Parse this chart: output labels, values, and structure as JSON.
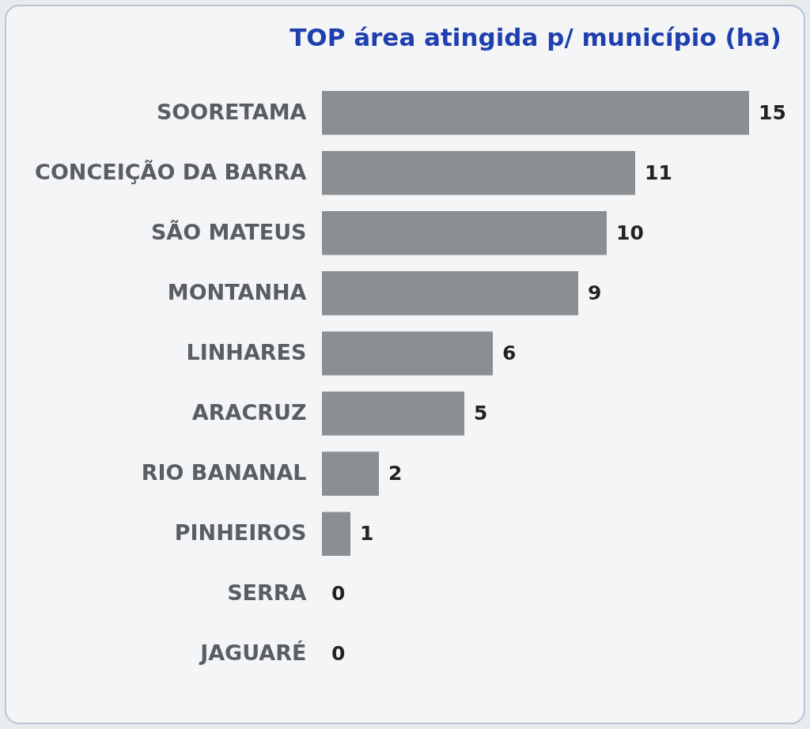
{
  "chart_data": {
    "type": "bar",
    "orientation": "horizontal",
    "title": "TOP área atingida p/ município (ha)",
    "categories": [
      "SOORETAMA",
      "CONCEIÇÃO DA BARRA",
      "SÃO MATEUS",
      "MONTANHA",
      "LINHARES",
      "ARACRUZ",
      "RIO BANANAL",
      "PINHEIROS",
      "SERRA",
      "JAGUARÉ"
    ],
    "values": [
      15,
      11,
      10,
      9,
      6,
      5,
      2,
      1,
      0,
      0
    ],
    "color": "#8c8f91",
    "data_labels": true
  }
}
